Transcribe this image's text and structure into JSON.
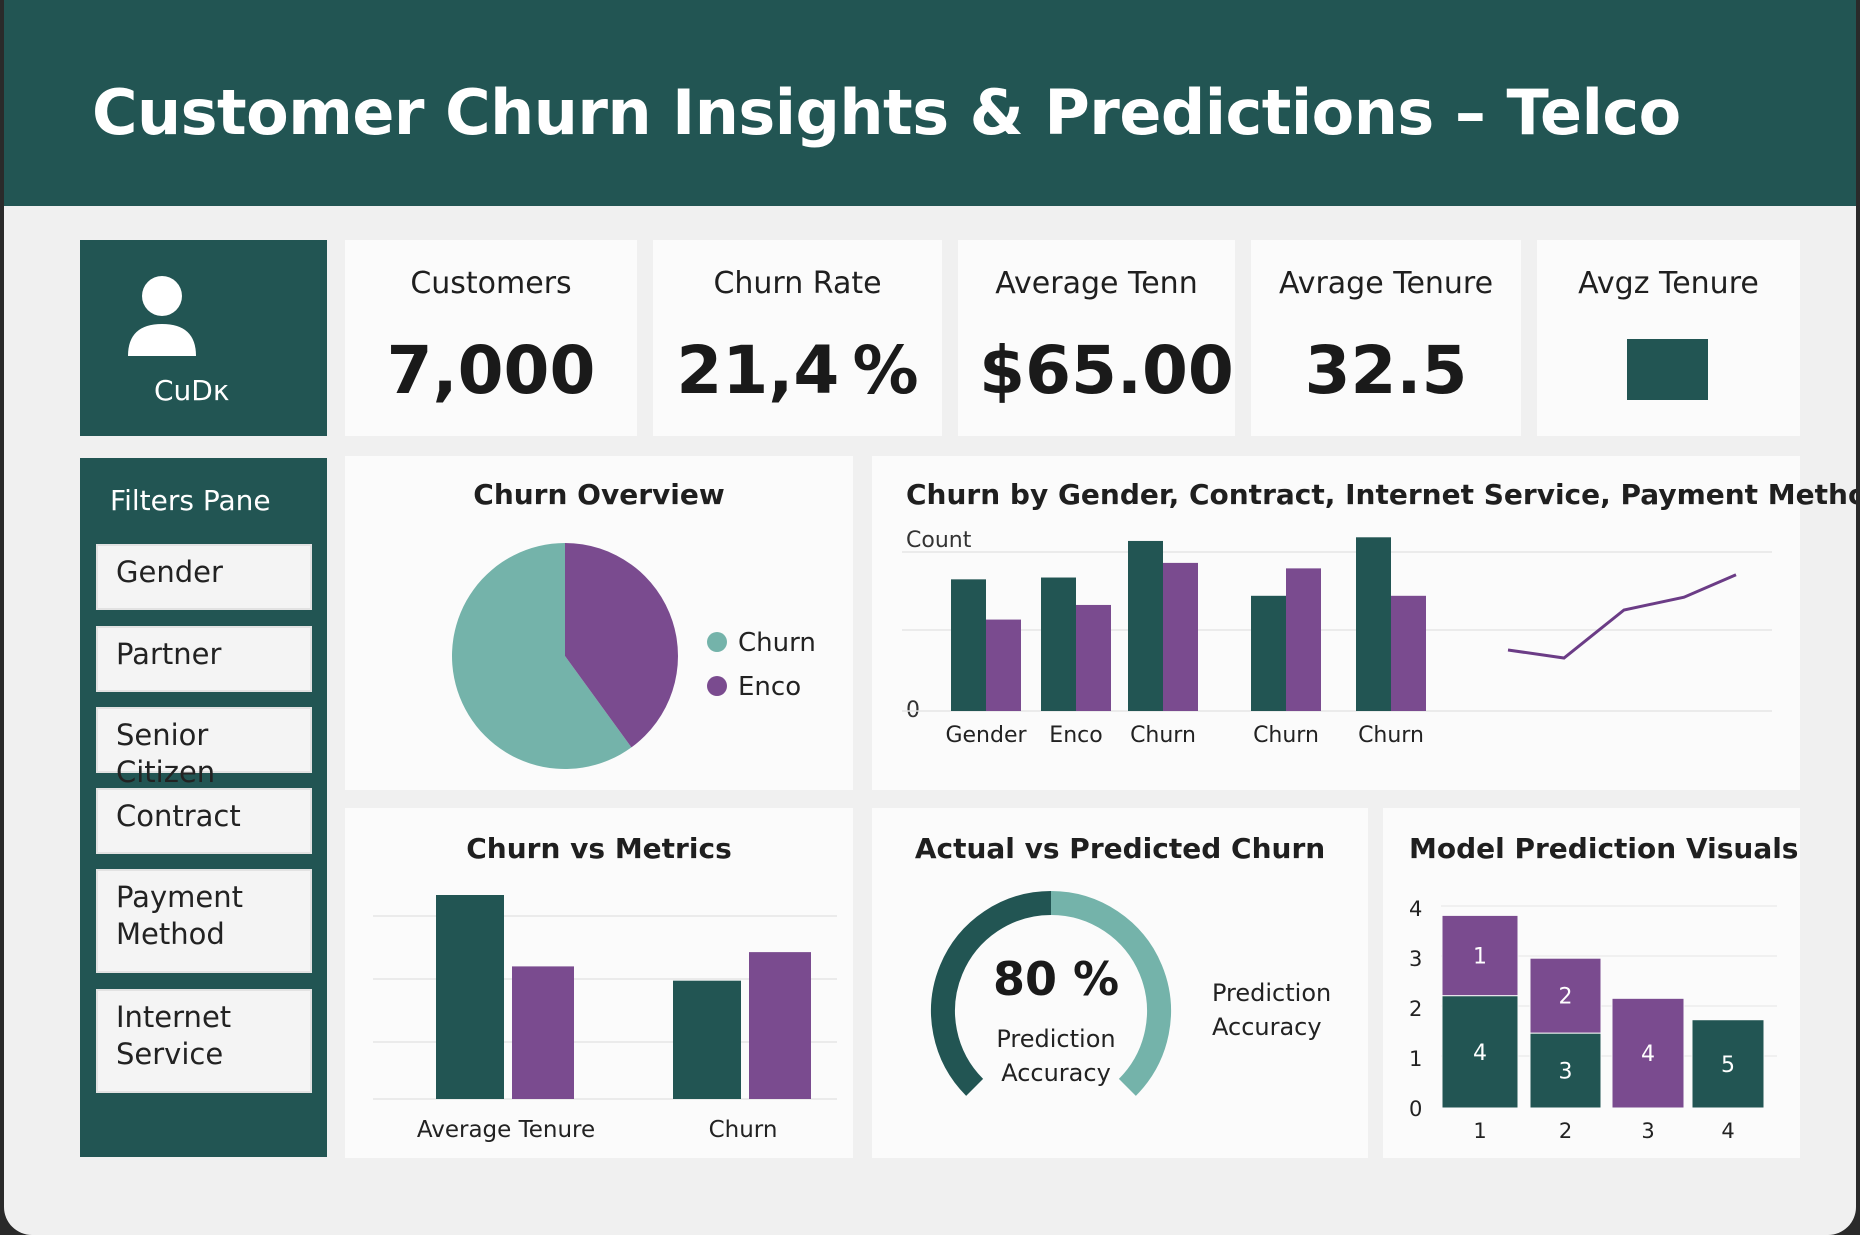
{
  "header": {
    "title": "Customer Churn Insights & Predictions – Telco"
  },
  "user": {
    "icon": "user-icon",
    "label": "CuDκ"
  },
  "kpis": [
    {
      "title": "Customers",
      "value": "7,000"
    },
    {
      "title": "Churn Rate",
      "value": "21,4 %"
    },
    {
      "title": "Average Tenn",
      "value": "$65.00"
    },
    {
      "title": "Avrage Tenure",
      "value": "32.5"
    },
    {
      "title": "Avgz Tenure",
      "value": ""
    }
  ],
  "filters": {
    "title": "Filters Pane",
    "items": [
      "Gender",
      "Partner",
      "Senior Citizen",
      "Contract",
      "Payment Method",
      "Internet Service"
    ]
  },
  "colors": {
    "teal_dark": "#225553",
    "teal_light": "#74b3aa",
    "purple": "#7a4b8f",
    "card": "#fbfbfb"
  },
  "charts": {
    "overview": {
      "title": "Churn Overview",
      "chart_data": {
        "type": "pie",
        "slices": [
          {
            "label": "Churn",
            "value": 60,
            "color": "#74b3aa"
          },
          {
            "label": "Enco",
            "value": 40,
            "color": "#7a4b8f"
          }
        ],
        "legend": "right"
      }
    },
    "by_segment": {
      "title": "Churn by Gender, Contract, Internet Service, Payment Method",
      "chart_data": {
        "type": "bar",
        "ylabel": "Count",
        "yticks": [
          "0"
        ],
        "ylim": [
          0,
          100
        ],
        "categories": [
          "Gender",
          "Enco",
          "Churn",
          "Churn",
          "Churn"
        ],
        "series": [
          {
            "values": [
              72,
              73,
              93,
              63,
              95
            ],
            "color": "#225553"
          },
          {
            "values": [
              50,
              58,
              81,
              78,
              63
            ],
            "color": "#7a4b8f"
          }
        ],
        "trend": {
          "type": "line",
          "values": [
            35,
            30,
            60,
            68,
            82
          ],
          "color": "#6b3c86"
        },
        "grid": true
      }
    },
    "metrics": {
      "title": "Churn vs Metrics",
      "chart_data": {
        "type": "bar",
        "categories": [
          "Average Tenure",
          "Churn"
        ],
        "series": [
          {
            "values": [
              100,
              58
            ],
            "color": "#225553"
          },
          {
            "values": [
              65,
              72
            ],
            "color": "#7a4b8f"
          }
        ],
        "ylim": [
          0,
          100
        ],
        "grid": true
      }
    },
    "gauge": {
      "title": "Actual vs Predicted Churn",
      "value": 80,
      "value_text": "80 %",
      "inner_label": "Prediction Accuracy",
      "side_label": "Prediction Accuracy"
    },
    "model": {
      "title": "Model Prediction Visuals",
      "chart_data": {
        "type": "bar",
        "yticks": [
          "0",
          "1",
          "2",
          "3",
          "4"
        ],
        "ylim": [
          0,
          4
        ],
        "categories": [
          "1",
          "2",
          "3",
          "4"
        ],
        "stacks": [
          {
            "segments": [
              {
                "value": 2.1,
                "label": "4",
                "color": "#225553"
              },
              {
                "value": 1.5,
                "label": "1",
                "color": "#7a4b8f"
              }
            ]
          },
          {
            "segments": [
              {
                "value": 1.4,
                "label": "3",
                "color": "#225553"
              },
              {
                "value": 1.4,
                "label": "2",
                "color": "#7a4b8f"
              }
            ]
          },
          {
            "segments": [
              {
                "value": 2.05,
                "label": "4",
                "color": "#7a4b8f"
              }
            ]
          },
          {
            "segments": [
              {
                "value": 1.65,
                "label": "5",
                "color": "#225553"
              }
            ]
          }
        ]
      }
    }
  }
}
